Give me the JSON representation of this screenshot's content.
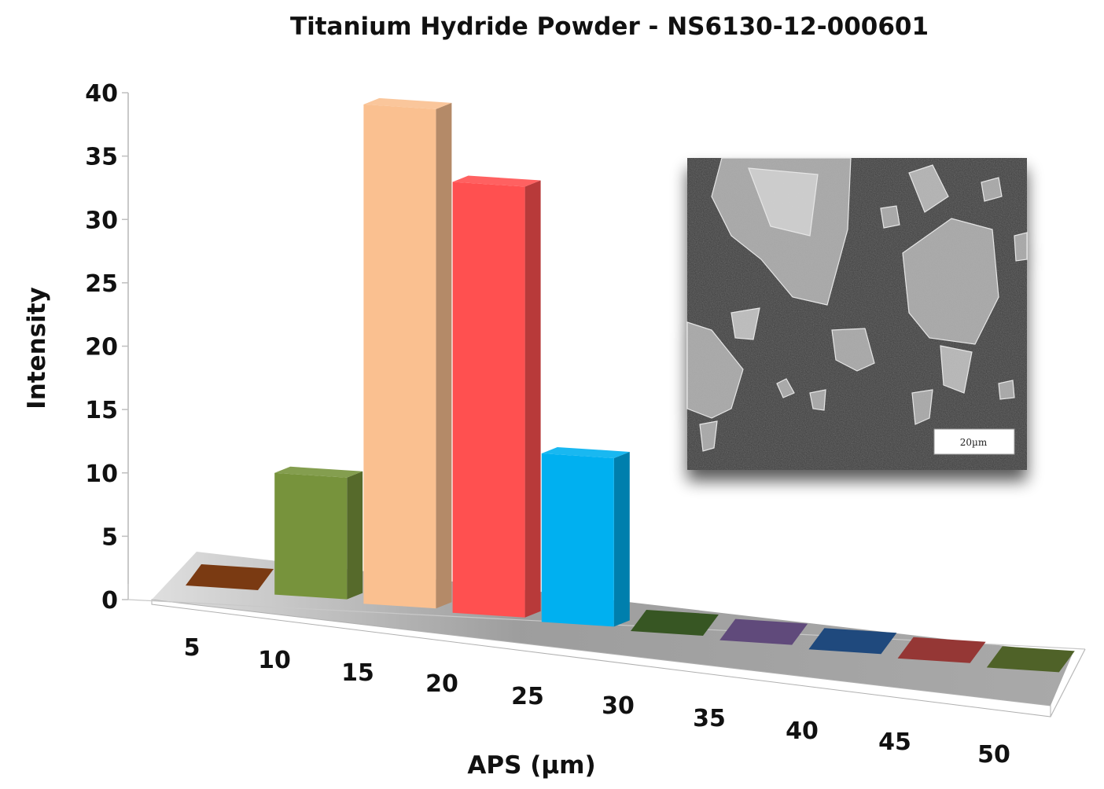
{
  "chart_data": {
    "type": "bar",
    "title": "Titanium Hydride Powder - NS6130-12-000601",
    "xlabel": "APS (µm)",
    "ylabel": "Intensity",
    "categories": [
      "5",
      "10",
      "15",
      "20",
      "25",
      "30",
      "35",
      "40",
      "45",
      "50"
    ],
    "values": [
      0,
      9.6,
      39.4,
      34,
      13.3,
      0,
      0,
      0,
      0,
      0
    ],
    "ylim": [
      0,
      40
    ],
    "yticks": [
      0,
      5,
      10,
      15,
      20,
      25,
      30,
      35,
      40
    ],
    "colors": [
      "#7a3a12",
      "#77933c",
      "#fac090",
      "#ff5050",
      "#00b0f0",
      "#375623",
      "#604a7b",
      "#1f497d",
      "#953735",
      "#4f6228"
    ],
    "projection": "3d",
    "grid": false,
    "legend": "none"
  },
  "inset": {
    "description_icon": "sem-micrograph-image",
    "scale_label": "20µm"
  }
}
